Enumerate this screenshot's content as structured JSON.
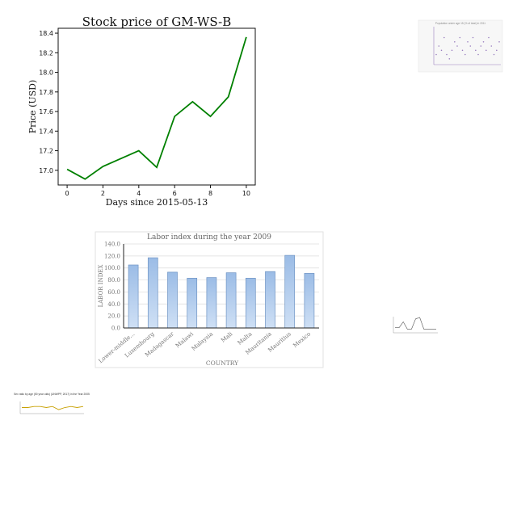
{
  "chart_data": [
    {
      "type": "line",
      "title": "Stock price of GM-WS-B",
      "xlabel": "Days since 2015-05-13",
      "ylabel": "Price (USD)",
      "x": [
        0,
        1,
        2,
        3,
        4,
        5,
        6,
        7,
        8,
        9,
        10
      ],
      "values": [
        17.01,
        16.91,
        17.04,
        17.12,
        17.2,
        17.03,
        17.55,
        17.7,
        17.55,
        17.75,
        18.36
      ],
      "xlim": [
        -0.5,
        10.5
      ],
      "ylim": [
        16.85,
        18.45
      ],
      "xticks": [
        "0",
        "2",
        "4",
        "6",
        "8",
        "10"
      ],
      "yticks": [
        "17.0",
        "17.2",
        "17.4",
        "17.6",
        "17.8",
        "18.0",
        "18.2",
        "18.4"
      ],
      "grid": false,
      "color": "#008000"
    },
    {
      "type": "bar",
      "title": "Labor index during the year 2009",
      "xlabel": "COUNTRY",
      "ylabel": "LABOR INDEX",
      "categories": [
        "Lower-middle...",
        "Luxembourg",
        "Madagascar",
        "Malawi",
        "Malaysia",
        "Mali",
        "Malta",
        "Mauritania",
        "Mauritius",
        "Mexico"
      ],
      "values": [
        105,
        117,
        93,
        83,
        84,
        92,
        83,
        94,
        121,
        91
      ],
      "ylim": [
        0,
        140
      ],
      "yticks": [
        "0.0",
        "20.0",
        "40.0",
        "60.0",
        "80.0",
        "100.0",
        "120.0",
        "140.0"
      ],
      "grid": true,
      "color": "#a9c6ea"
    },
    {
      "type": "scatter",
      "title": "Population under age 15 (% of total) in 2011",
      "values": [
        5,
        7,
        6,
        9,
        5,
        4,
        6,
        8,
        7,
        9,
        6,
        5,
        8,
        7,
        9,
        6,
        5,
        7,
        8,
        6,
        9,
        7,
        5,
        6,
        8
      ],
      "color": "#9a7fc0"
    },
    {
      "type": "line",
      "title": "",
      "values": [
        3,
        3,
        7,
        2,
        2,
        9,
        10,
        2,
        2,
        2,
        2
      ],
      "color": "#555555"
    },
    {
      "type": "line",
      "title": "Sex ratio by age (50 year olds) (UNWPP, 2017) in the Year 2005",
      "values": [
        5,
        5,
        6,
        6,
        5,
        6,
        3,
        5,
        6,
        5,
        6
      ],
      "color": "#c8a000"
    }
  ]
}
